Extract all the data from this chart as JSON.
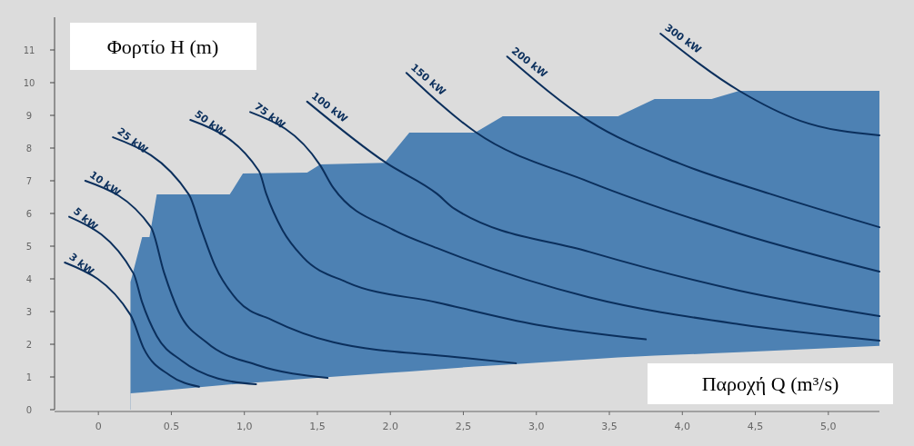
{
  "chart_data": {
    "type": "line",
    "xlabel": "Παροχή Q (m³/s)",
    "ylabel": "Φορτίο H (m)",
    "xlim": [
      -0.3,
      5.35
    ],
    "ylim": [
      0,
      12
    ],
    "xticks": [
      0,
      {
        "value": 0.5,
        "label": "0.5"
      },
      {
        "value": 1,
        "label": "1,0"
      },
      {
        "value": 1.5,
        "label": "1,5"
      },
      {
        "value": 2,
        "label": "2.0"
      },
      {
        "value": 2.5,
        "label": "2,5"
      },
      {
        "value": 3,
        "label": "3,0"
      },
      {
        "value": 3.5,
        "label": "3,5"
      },
      {
        "value": 4,
        "label": "4,0"
      },
      {
        "value": 4.5,
        "label": "4,5"
      },
      {
        "value": 5,
        "label": "5,0"
      }
    ],
    "yticks": [
      0,
      1,
      2,
      3,
      4,
      5,
      6,
      7,
      8,
      9,
      10,
      11
    ],
    "grid": false,
    "series": [
      {
        "type": "area",
        "color": "#4d81b3",
        "x": [
          0.22,
          0.3,
          0.35,
          0.4,
          0.9,
          0.99,
          1.43,
          1.52,
          1.96,
          2.13,
          2.58,
          2.77,
          3.56,
          3.81,
          4.2,
          4.39,
          5.35
        ],
        "values": [
          3.9,
          5.28,
          5.28,
          6.58,
          6.58,
          7.22,
          7.25,
          7.5,
          7.55,
          8.47,
          8.47,
          8.97,
          8.97,
          9.5,
          9.5,
          9.75,
          9.75
        ]
      },
      {
        "type": "area",
        "color": "#dcdcdc",
        "x": [
          0.22,
          0.3,
          0.35,
          0.4,
          0.9,
          0.99,
          1.43,
          1.52,
          1.96,
          2.13,
          2.58,
          2.77,
          3.56,
          3.81,
          4.2,
          4.39,
          5.35
        ],
        "values": [
          0.5,
          0.53,
          0.55,
          0.57,
          0.77,
          0.8,
          0.95,
          0.98,
          1.12,
          1.17,
          1.32,
          1.37,
          1.6,
          1.65,
          1.72,
          1.76,
          1.95
        ]
      },
      {
        "name": "3 kW",
        "color": "#0b2f5c",
        "x": [
          -0.23,
          0.22,
          0.31,
          0.49,
          0.69
        ],
        "values": [
          4.5,
          2.9,
          1.88,
          1.05,
          0.7
        ]
      },
      {
        "name": "5 kW",
        "color": "#0b2f5c",
        "x": [
          -0.2,
          0.24,
          0.3,
          0.4,
          0.57,
          0.82,
          1.08
        ],
        "values": [
          5.9,
          4.17,
          3.28,
          2.25,
          1.5,
          0.95,
          0.78
        ]
      },
      {
        "name": "10 kW",
        "color": "#0b2f5c",
        "x": [
          -0.09,
          0.36,
          0.45,
          0.55,
          0.74,
          1.09,
          1.57
        ],
        "values": [
          7.0,
          5.58,
          4.19,
          3.0,
          2.06,
          1.36,
          0.97
        ]
      },
      {
        "name": "25 kW",
        "color": "#0b2f5c",
        "x": [
          0.1,
          0.62,
          0.7,
          0.8,
          0.95,
          1.2,
          1.61,
          2.44,
          2.86
        ],
        "values": [
          8.33,
          6.58,
          5.58,
          4.39,
          3.36,
          2.72,
          2.06,
          1.61,
          1.42
        ]
      },
      {
        "name": "50 kW",
        "color": "#0b2f5c",
        "x": [
          0.63,
          1.1,
          1.15,
          1.26,
          1.4,
          1.7,
          2.32,
          3.0,
          3.75
        ],
        "values": [
          8.86,
          7.3,
          6.6,
          5.5,
          4.67,
          3.9,
          3.28,
          2.6,
          2.15
        ]
      },
      {
        "name": "75 kW",
        "color": "#0b2f5c",
        "x": [
          1.04,
          1.52,
          1.61,
          2.02,
          2.32,
          3.36,
          4.39,
          5.35
        ],
        "values": [
          9.1,
          7.47,
          6.78,
          5.5,
          4.94,
          3.44,
          2.61,
          2.11
        ]
      },
      {
        "name": "100 kW",
        "color": "#0b2f5c",
        "x": [
          1.43,
          1.97,
          2.32,
          2.44,
          3.36,
          4.39,
          5.35
        ],
        "values": [
          9.42,
          7.55,
          6.6,
          6.14,
          4.83,
          3.64,
          2.86
        ]
      },
      {
        "name": "150 kW",
        "color": "#0b2f5c",
        "x": [
          2.11,
          2.58,
          3.36,
          4.39,
          5.35
        ],
        "values": [
          10.3,
          8.5,
          6.97,
          5.39,
          4.22
        ]
      },
      {
        "name": "200 kW",
        "color": "#0b2f5c",
        "x": [
          2.8,
          3.36,
          3.98,
          4.6,
          5.35
        ],
        "values": [
          10.8,
          8.83,
          7.53,
          6.6,
          5.58
        ]
      },
      {
        "name": "300 kW",
        "color": "#0b2f5c",
        "x": [
          3.85,
          4.39,
          4.81,
          5.35
        ],
        "values": [
          11.5,
          9.75,
          8.83,
          8.39
        ]
      }
    ]
  }
}
